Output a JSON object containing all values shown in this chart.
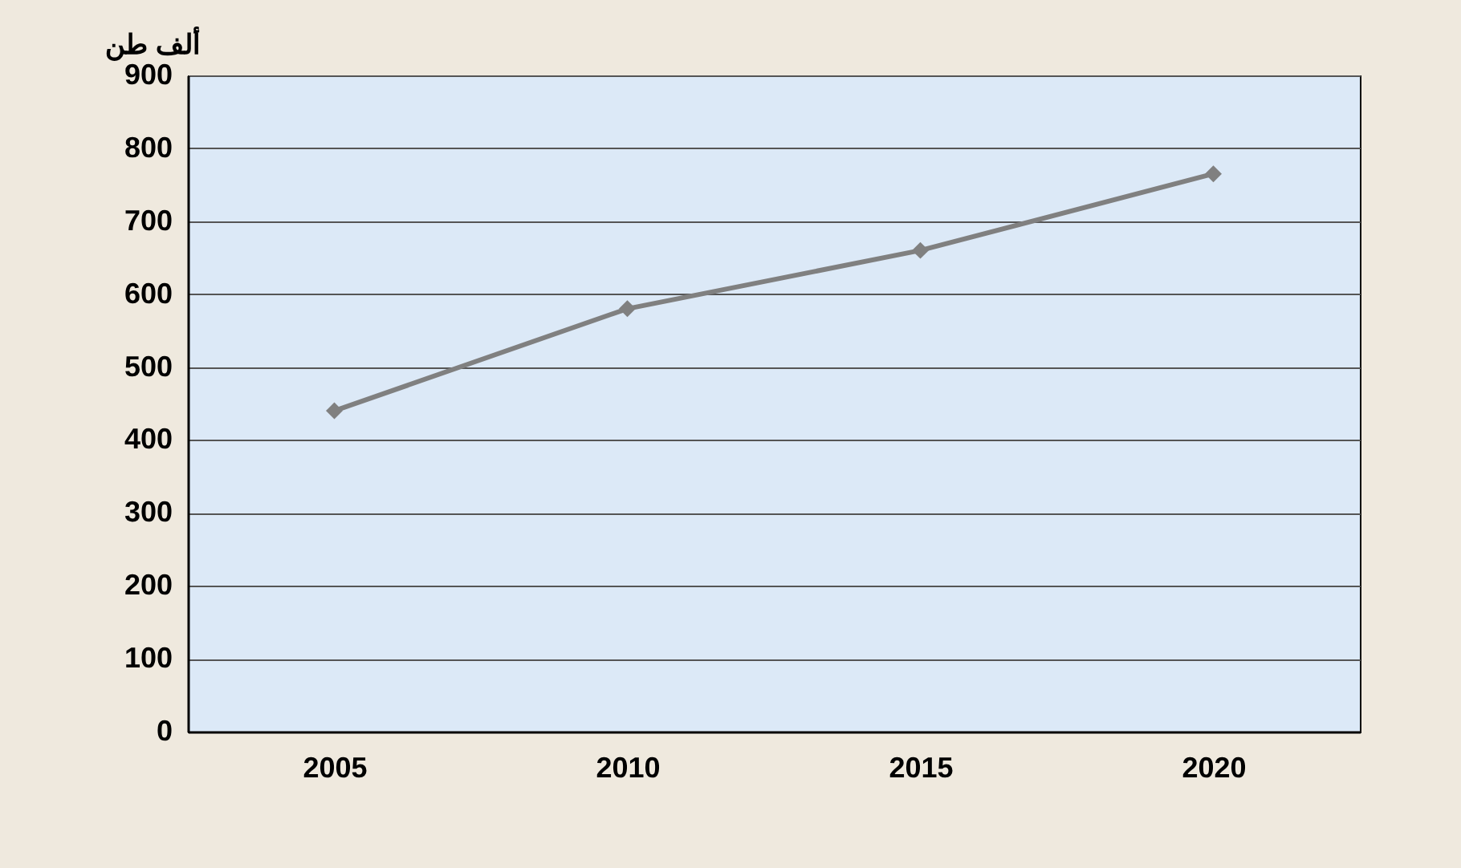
{
  "chart_data": {
    "type": "line",
    "ylabel": "ألف طن",
    "categories": [
      "2005",
      "2010",
      "2015",
      "2020"
    ],
    "series": [
      {
        "color": "#808080",
        "values": [
          440,
          580,
          660,
          765
        ]
      }
    ],
    "ylim": [
      0,
      900
    ],
    "yticks": [
      0,
      100,
      200,
      300,
      400,
      500,
      600,
      700,
      800,
      900
    ],
    "grid": "y",
    "legend": false,
    "marker": "diamond",
    "line_style": "solid"
  }
}
